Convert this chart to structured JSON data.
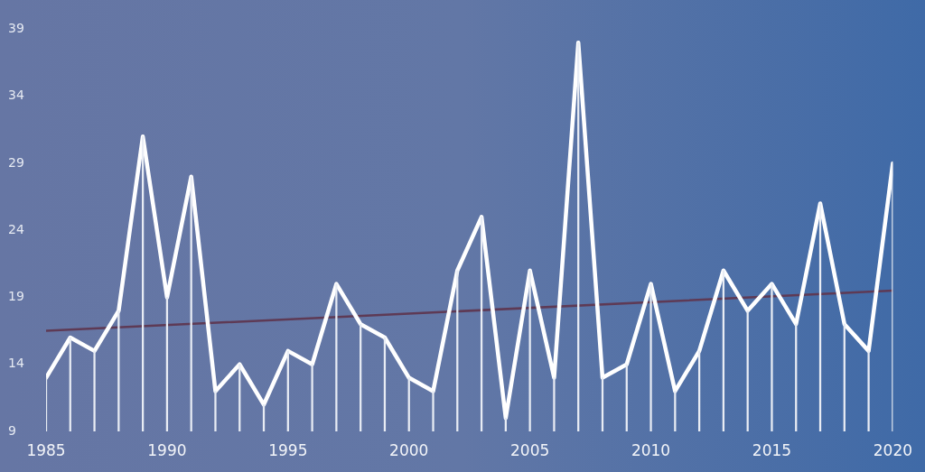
{
  "chart_data": {
    "type": "line",
    "x": [
      1985,
      1986,
      1987,
      1988,
      1989,
      1990,
      1991,
      1992,
      1993,
      1994,
      1995,
      1996,
      1997,
      1998,
      1999,
      2000,
      2001,
      2002,
      2003,
      2004,
      2005,
      2006,
      2007,
      2008,
      2009,
      2010,
      2011,
      2012,
      2013,
      2014,
      2015,
      2016,
      2017,
      2018,
      2019,
      2020
    ],
    "series": [
      {
        "type": "line",
        "color": "#5e3a55",
        "x": [
          1985,
          2020
        ],
        "values": [
          16.5,
          19.5
        ]
      },
      {
        "color": "#ffffff",
        "values": [
          13,
          16,
          15,
          18,
          31,
          19,
          28,
          12,
          14,
          11,
          15,
          14,
          20,
          17,
          16,
          13,
          12,
          21,
          25,
          10,
          21,
          13,
          38,
          13,
          14,
          20,
          12,
          15,
          21,
          18,
          20,
          17,
          26,
          17,
          15,
          29
        ]
      },
      {
        "type": "bar",
        "color": "#e8ecf4",
        "values": [
          13,
          16,
          15,
          18,
          31,
          19,
          28,
          12,
          14,
          11,
          15,
          14,
          20,
          17,
          16,
          13,
          12,
          21,
          25,
          10,
          21,
          13,
          38,
          13,
          14,
          20,
          12,
          15,
          21,
          18,
          20,
          17,
          26,
          17,
          15,
          29
        ]
      }
    ],
    "xlim": [
      1985,
      2020
    ],
    "xticks": [
      1985,
      1990,
      1995,
      2000,
      2005,
      2010,
      2015,
      2020
    ],
    "ylim": [
      9,
      39
    ],
    "yticks": [
      9,
      14,
      19,
      24,
      29,
      34,
      39
    ],
    "grid": false,
    "legend": false,
    "marker": "none",
    "line_style": "solid"
  }
}
